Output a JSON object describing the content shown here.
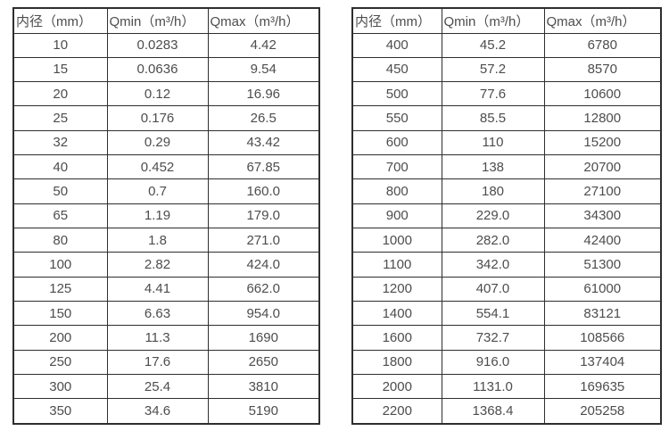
{
  "colors": {
    "background": "#ffffff",
    "border": "#2e2e2e",
    "text": "#4d4d4d"
  },
  "left_table": {
    "headers": [
      "内径（mm）",
      "Qmin（m³/h）",
      "Qmax（m³/h）"
    ],
    "rows": [
      [
        "10",
        "0.0283",
        "4.42"
      ],
      [
        "15",
        "0.0636",
        "9.54"
      ],
      [
        "20",
        "0.12",
        "16.96"
      ],
      [
        "25",
        "0.176",
        "26.5"
      ],
      [
        "32",
        "0.29",
        "43.42"
      ],
      [
        "40",
        "0.452",
        "67.85"
      ],
      [
        "50",
        "0.7",
        "160.0"
      ],
      [
        "65",
        "1.19",
        "179.0"
      ],
      [
        "80",
        "1.8",
        "271.0"
      ],
      [
        "100",
        "2.82",
        "424.0"
      ],
      [
        "125",
        "4.41",
        "662.0"
      ],
      [
        "150",
        "6.63",
        "954.0"
      ],
      [
        "200",
        "11.3",
        "1690"
      ],
      [
        "250",
        "17.6",
        "2650"
      ],
      [
        "300",
        "25.4",
        "3810"
      ],
      [
        "350",
        "34.6",
        "5190"
      ]
    ]
  },
  "right_table": {
    "headers": [
      "内径（mm）",
      "Qmin（m³/h）",
      "Qmax（m³/h）"
    ],
    "rows": [
      [
        "400",
        "45.2",
        "6780"
      ],
      [
        "450",
        "57.2",
        "8570"
      ],
      [
        "500",
        "77.6",
        "10600"
      ],
      [
        "550",
        "85.5",
        "12800"
      ],
      [
        "600",
        "110",
        "15200"
      ],
      [
        "700",
        "138",
        "20700"
      ],
      [
        "800",
        "180",
        "27100"
      ],
      [
        "900",
        "229.0",
        "34300"
      ],
      [
        "1000",
        "282.0",
        "42400"
      ],
      [
        "1100",
        "342.0",
        "51300"
      ],
      [
        "1200",
        "407.0",
        "61000"
      ],
      [
        "1400",
        "554.1",
        "83121"
      ],
      [
        "1600",
        "732.7",
        "108566"
      ],
      [
        "1800",
        "916.0",
        "137404"
      ],
      [
        "2000",
        "1131.0",
        "169635"
      ],
      [
        "2200",
        "1368.4",
        "205258"
      ]
    ]
  }
}
